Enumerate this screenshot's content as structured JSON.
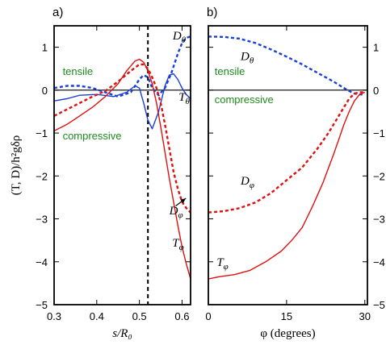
{
  "chart_data": [
    {
      "panel_label": "a)",
      "type": "line",
      "xlabel": "s/R₀",
      "ylabel": "(T, D)/h²gδρ",
      "xlim": [
        0.3,
        0.62
      ],
      "ylim": [
        -5,
        1.5
      ],
      "xticks": [
        0.3,
        0.4,
        0.5,
        0.6
      ],
      "xtick_labels": [
        "0.3",
        "0.4",
        "0.5",
        "0.6"
      ],
      "yticks": [
        -5,
        -4,
        -3,
        -2,
        -1,
        0,
        1
      ],
      "ytick_labels": [
        "−5",
        "−4",
        "−3",
        "−2",
        "−1",
        "0",
        "1"
      ],
      "hlines": [
        0
      ],
      "vlines": [
        0.52
      ],
      "region_labels": [
        {
          "text": "tensile",
          "x": 0.32,
          "y": 0.35
        },
        {
          "text": "compressive",
          "x": 0.32,
          "y": -1.15
        }
      ],
      "series": [
        {
          "label": "D_θ",
          "color": "#1a3fd6",
          "style": "dashed",
          "x": [
            0.3,
            0.33,
            0.36,
            0.39,
            0.42,
            0.45,
            0.48,
            0.5,
            0.51,
            0.52,
            0.53,
            0.545,
            0.56,
            0.575,
            0.59,
            0.6,
            0.61,
            0.62
          ],
          "y": [
            0.05,
            0.1,
            0.1,
            0.05,
            -0.05,
            -0.15,
            -0.05,
            0.25,
            0.35,
            0.3,
            0.05,
            -0.12,
            0.05,
            0.4,
            0.85,
            1.1,
            1.22,
            1.25
          ]
        },
        {
          "label": "T_θ",
          "color": "#1a3fd6",
          "style": "solid",
          "x": [
            0.3,
            0.33,
            0.36,
            0.4,
            0.44,
            0.47,
            0.49,
            0.5,
            0.51,
            0.52,
            0.53,
            0.545,
            0.56,
            0.57,
            0.58,
            0.59,
            0.6,
            0.61,
            0.62
          ],
          "y": [
            -0.25,
            -0.2,
            -0.12,
            -0.1,
            -0.15,
            -0.05,
            0.1,
            0.05,
            -0.3,
            -0.7,
            -0.9,
            -0.5,
            0.1,
            0.35,
            0.38,
            0.25,
            0.05,
            -0.1,
            -0.2
          ]
        },
        {
          "label": "D_φ",
          "color": "#dd1111",
          "style": "dashed",
          "x": [
            0.3,
            0.33,
            0.36,
            0.39,
            0.42,
            0.45,
            0.48,
            0.5,
            0.51,
            0.52,
            0.53,
            0.54,
            0.55,
            0.56,
            0.57,
            0.58,
            0.59,
            0.6,
            0.61,
            0.62
          ],
          "y": [
            -0.6,
            -0.45,
            -0.3,
            -0.15,
            -0.02,
            0.2,
            0.45,
            0.6,
            0.6,
            0.5,
            0.3,
            0.05,
            -0.3,
            -0.8,
            -1.35,
            -1.9,
            -2.3,
            -2.6,
            -2.75,
            -2.85
          ]
        },
        {
          "label": "T_φ",
          "color": "#dd1111",
          "style": "solid",
          "x": [
            0.3,
            0.33,
            0.36,
            0.39,
            0.42,
            0.45,
            0.47,
            0.49,
            0.5,
            0.51,
            0.52,
            0.53,
            0.54,
            0.55,
            0.56,
            0.57,
            0.58,
            0.59,
            0.6,
            0.61,
            0.62
          ],
          "y": [
            -0.95,
            -0.8,
            -0.6,
            -0.4,
            -0.15,
            0.15,
            0.45,
            0.68,
            0.72,
            0.65,
            0.45,
            0.15,
            -0.3,
            -0.85,
            -1.45,
            -2.05,
            -2.6,
            -3.15,
            -3.65,
            -4.05,
            -4.4
          ]
        }
      ],
      "series_labels": [
        {
          "text": "D",
          "sub": "θ",
          "x": 0.578,
          "y": 1.18
        },
        {
          "text": "T",
          "sub": "θ",
          "x": 0.592,
          "y": -0.25
        },
        {
          "text": "D",
          "sub": "φ",
          "x": 0.57,
          "y": -2.9
        },
        {
          "text": "T",
          "sub": "φ",
          "x": 0.577,
          "y": -3.65
        }
      ],
      "arrow": {
        "from": [
          0.585,
          -2.7
        ],
        "to": [
          0.609,
          -2.52
        ]
      }
    },
    {
      "panel_label": "b)",
      "type": "line",
      "xlabel": "φ (degrees)",
      "xlim": [
        0,
        30.5
      ],
      "ylim": [
        -5,
        1.5
      ],
      "xticks": [
        0,
        15,
        30
      ],
      "xtick_labels": [
        "0",
        "15",
        "30"
      ],
      "yticks": [
        -5,
        -4,
        -3,
        -2,
        -1,
        0,
        1
      ],
      "ytick_labels": [
        "−5",
        "−4",
        "−3",
        "−2",
        "−1",
        "0",
        "1"
      ],
      "hlines": [
        0
      ],
      "region_labels": [
        {
          "text": "tensile",
          "x": 1.2,
          "y": 0.35
        },
        {
          "text": "compressive",
          "x": 1.2,
          "y": -0.3
        }
      ],
      "series": [
        {
          "label": "D_θ",
          "color": "#1a3fd6",
          "style": "dashed",
          "x": [
            0,
            3,
            6,
            9,
            12,
            15,
            18,
            21,
            24,
            26,
            27,
            28,
            29,
            30
          ],
          "y": [
            1.25,
            1.24,
            1.2,
            1.1,
            0.95,
            0.78,
            0.6,
            0.4,
            0.2,
            0.05,
            -0.02,
            -0.08,
            -0.1,
            -0.1
          ]
        },
        {
          "label": "D_φ",
          "color": "#dd1111",
          "style": "dashed",
          "x": [
            0,
            3,
            6,
            9,
            12,
            15,
            18,
            21,
            23,
            25,
            26,
            27,
            28,
            29,
            30
          ],
          "y": [
            -2.85,
            -2.82,
            -2.75,
            -2.62,
            -2.4,
            -2.1,
            -1.8,
            -1.35,
            -1.0,
            -0.6,
            -0.4,
            -0.2,
            -0.08,
            -0.05,
            -0.05
          ]
        },
        {
          "label": "T_φ",
          "color": "#dd1111",
          "style": "solid",
          "x": [
            0,
            2,
            5,
            8,
            11,
            14,
            16,
            18,
            20,
            22,
            24,
            25,
            26,
            27,
            28,
            29,
            30
          ],
          "y": [
            -4.4,
            -4.35,
            -4.3,
            -4.2,
            -4.0,
            -3.75,
            -3.5,
            -3.2,
            -2.7,
            -2.15,
            -1.5,
            -1.15,
            -0.8,
            -0.5,
            -0.25,
            -0.1,
            -0.05
          ]
        }
      ],
      "series_labels": [
        {
          "text": "D",
          "sub": "θ",
          "x": 6.2,
          "y": 0.7
        },
        {
          "text": "D",
          "sub": "φ",
          "x": 6.2,
          "y": -2.2
        },
        {
          "text": "T",
          "sub": "φ",
          "x": 1.6,
          "y": -4.1
        }
      ]
    }
  ]
}
